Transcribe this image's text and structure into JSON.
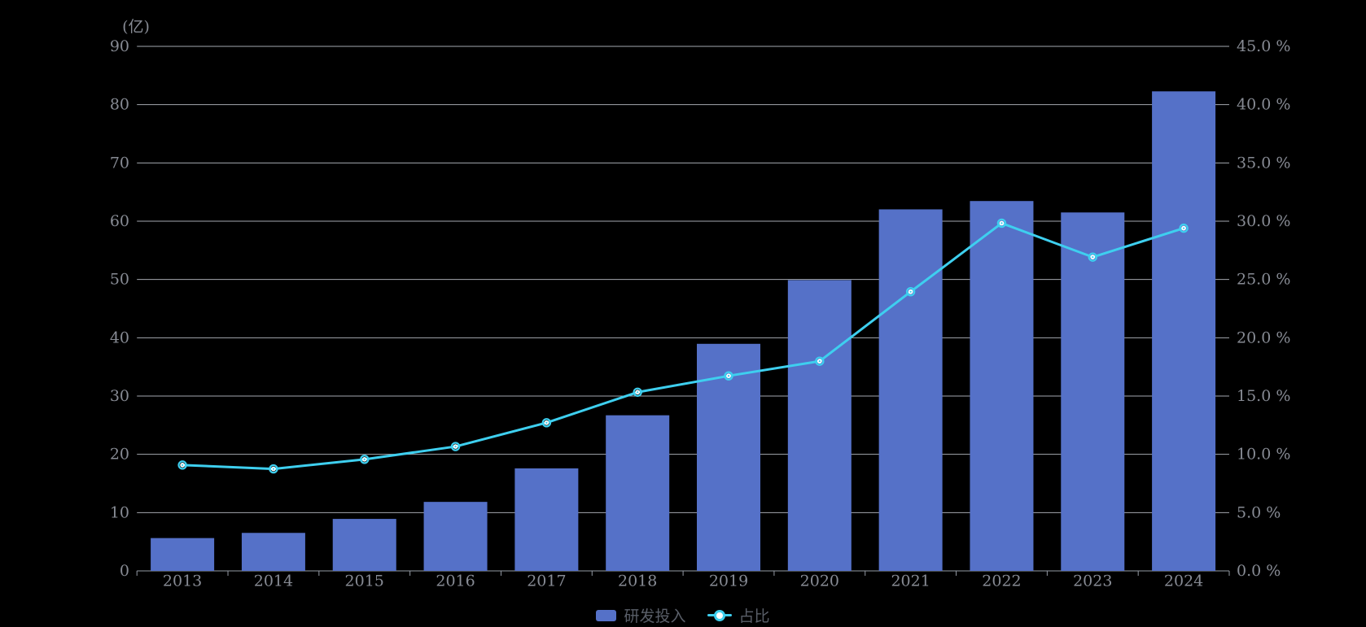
{
  "chart_data": {
    "type": "combo",
    "title": "",
    "unit_label": "(亿)",
    "background": "#000000",
    "grid": true,
    "categories": [
      "2013",
      "2014",
      "2015",
      "2016",
      "2017",
      "2018",
      "2019",
      "2020",
      "2021",
      "2022",
      "2023",
      "2024"
    ],
    "series": [
      {
        "name": "研发投入",
        "type": "bar",
        "axis": "left",
        "color": "#5571C8",
        "values": [
          5.63,
          6.52,
          8.92,
          11.84,
          17.59,
          26.7,
          38.96,
          49.89,
          62.03,
          63.46,
          61.5,
          82.28
        ]
      },
      {
        "name": "占比",
        "type": "line",
        "axis": "right",
        "color": "#3ECFEF",
        "marker_fill": "#FFFFFF",
        "values": [
          9.08,
          8.75,
          9.57,
          10.67,
          12.71,
          15.33,
          16.73,
          17.99,
          23.95,
          29.83,
          26.92,
          29.4
        ]
      }
    ],
    "left_axis": {
      "min": 0,
      "max": 90,
      "step": 10,
      "tick_labels": [
        "0",
        "10",
        "20",
        "30",
        "40",
        "50",
        "60",
        "70",
        "80",
        "90"
      ]
    },
    "right_axis": {
      "min": 0,
      "max": 45,
      "step": 5,
      "tick_labels": [
        "0.0 %",
        "5.0 %",
        "10.0 %",
        "15.0 %",
        "20.0 %",
        "25.0 %",
        "30.0 %",
        "35.0 %",
        "40.0 %",
        "45.0 %"
      ]
    },
    "legend": {
      "position": "bottom-center",
      "items": [
        "研发投入",
        "占比"
      ]
    }
  }
}
